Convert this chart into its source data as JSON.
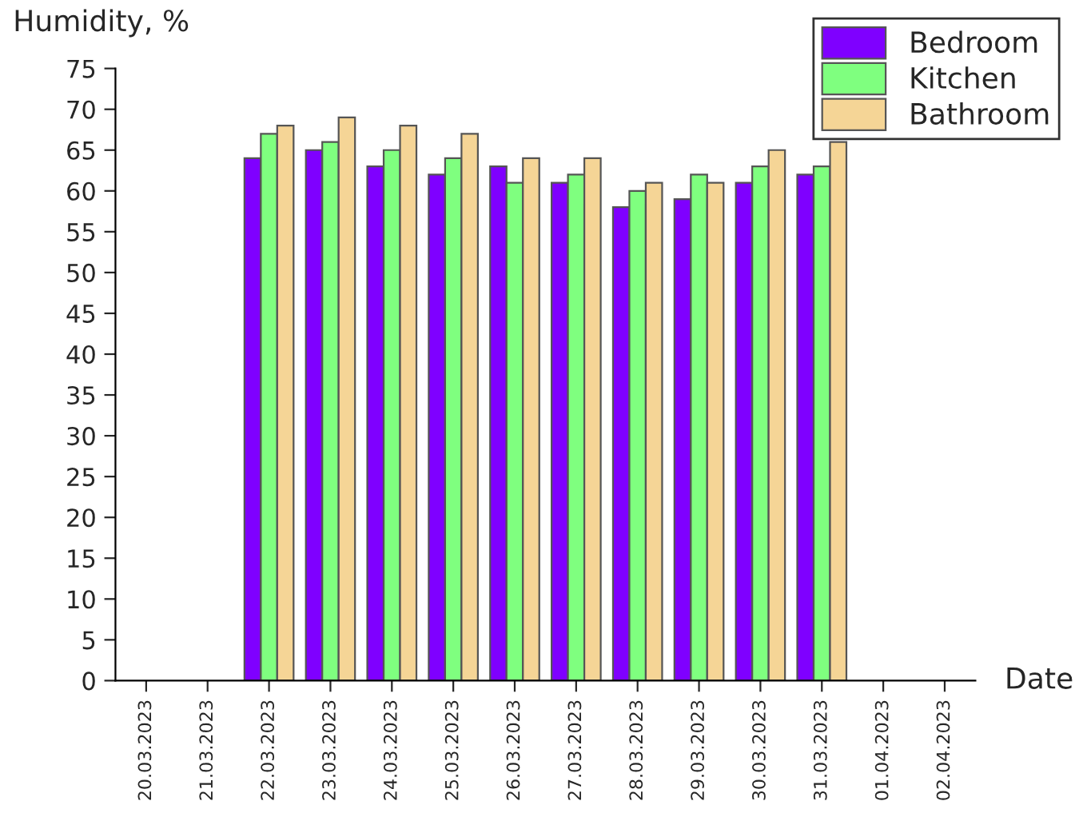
{
  "chart_data": {
    "type": "bar",
    "xlabel": "Date",
    "ylabel": "Humidity, %",
    "categories": [
      "20.03.2023",
      "21.03.2023",
      "22.03.2023",
      "23.03.2023",
      "24.03.2023",
      "25.03.2023",
      "26.03.2023",
      "27.03.2023",
      "28.03.2023",
      "29.03.2023",
      "30.03.2023",
      "31.03.2023",
      "01.04.2023",
      "02.04.2023"
    ],
    "series": [
      {
        "name": "Bedroom",
        "color": "#7f00ff",
        "values": [
          null,
          null,
          64,
          65,
          63,
          62,
          63,
          61,
          58,
          59,
          61,
          62,
          null,
          null
        ]
      },
      {
        "name": "Kitchen",
        "color": "#7fff7f",
        "values": [
          null,
          null,
          67,
          66,
          65,
          64,
          61,
          62,
          60,
          62,
          63,
          63,
          null,
          null
        ]
      },
      {
        "name": "Bathroom",
        "color": "#f5d596",
        "values": [
          null,
          null,
          68,
          69,
          68,
          67,
          64,
          64,
          61,
          61,
          65,
          66,
          null,
          null
        ]
      }
    ],
    "ylim": [
      0,
      75
    ],
    "yticks": [
      0,
      5,
      10,
      15,
      20,
      25,
      30,
      35,
      40,
      45,
      50,
      55,
      60,
      65,
      70,
      75
    ],
    "grid": false,
    "legend": "top right"
  }
}
